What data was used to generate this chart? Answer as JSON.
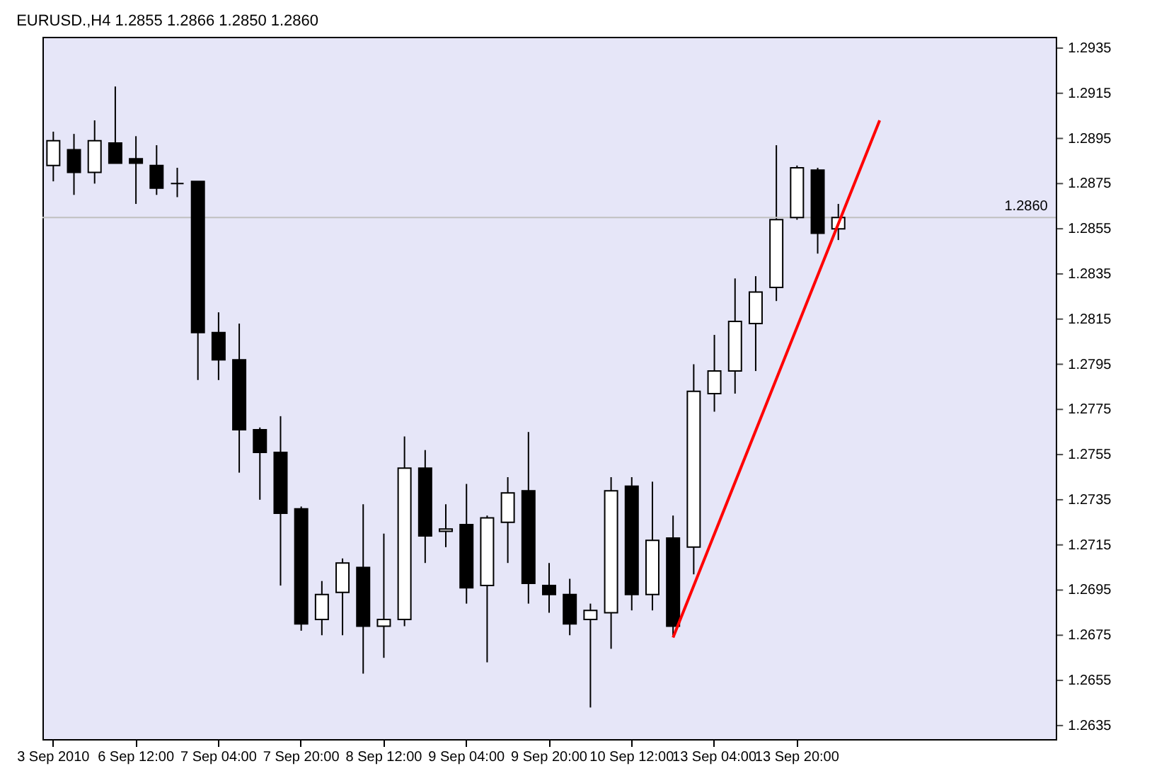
{
  "chart_data": {
    "type": "candlestick",
    "title": "EURUSD.,H4 1.2855 1.2866 1.2850 1.2860",
    "categories": [
      "3 Sep 2010",
      null,
      null,
      null,
      "6 Sep 12:00",
      null,
      null,
      null,
      "7 Sep 04:00",
      null,
      null,
      null,
      "7 Sep 20:00",
      null,
      null,
      null,
      "8 Sep 12:00",
      null,
      null,
      null,
      "9 Sep 04:00",
      null,
      null,
      null,
      "9 Sep 20:00",
      null,
      null,
      null,
      "10 Sep 12:00",
      null,
      null,
      null,
      "13 Sep 04:00",
      null,
      null,
      null,
      "13 Sep 20:00",
      null,
      null,
      null,
      null,
      null,
      null,
      null,
      null,
      null,
      null,
      null,
      null
    ],
    "ohlc": [
      [
        1.2883,
        1.2898,
        1.2876,
        1.2894
      ],
      [
        1.289,
        1.2897,
        1.287,
        1.288
      ],
      [
        1.288,
        1.2903,
        1.2875,
        1.2894
      ],
      [
        1.2893,
        1.2918,
        1.2884,
        1.2884
      ],
      [
        1.2886,
        1.2896,
        1.2866,
        1.2884
      ],
      [
        1.2883,
        1.2892,
        1.287,
        1.2873
      ],
      [
        1.2875,
        1.2882,
        1.2869,
        1.2875
      ],
      [
        1.2876,
        1.2876,
        1.2788,
        1.2809
      ],
      [
        1.2809,
        1.2818,
        1.2788,
        1.2797
      ],
      [
        1.2797,
        1.2813,
        1.2747,
        1.2766
      ],
      [
        1.2766,
        1.2767,
        1.2735,
        1.2756
      ],
      [
        1.2756,
        1.2772,
        1.2697,
        1.2729
      ],
      [
        1.2731,
        1.2732,
        1.2677,
        1.268
      ],
      [
        1.2682,
        1.2699,
        1.2675,
        1.2693
      ],
      [
        1.2694,
        1.2709,
        1.2675,
        1.2707
      ],
      [
        1.2705,
        1.2733,
        1.2658,
        1.2679
      ],
      [
        1.2679,
        1.272,
        1.2665,
        1.2682
      ],
      [
        1.2682,
        1.2763,
        1.2679,
        1.2749
      ],
      [
        1.2749,
        1.2757,
        1.2707,
        1.2719
      ],
      [
        1.2721,
        1.2733,
        1.2714,
        1.2722
      ],
      [
        1.2724,
        1.2742,
        1.2689,
        1.2696
      ],
      [
        1.2697,
        1.2728,
        1.2663,
        1.2727
      ],
      [
        1.2725,
        1.2745,
        1.2707,
        1.2738
      ],
      [
        1.2739,
        1.2765,
        1.2689,
        1.2698
      ],
      [
        1.2697,
        1.2707,
        1.2685,
        1.2693
      ],
      [
        1.2693,
        1.27,
        1.2675,
        1.268
      ],
      [
        1.2682,
        1.2689,
        1.2643,
        1.2686
      ],
      [
        1.2685,
        1.2745,
        1.2669,
        1.2739
      ],
      [
        1.2741,
        1.2745,
        1.2686,
        1.2693
      ],
      [
        1.2693,
        1.2743,
        1.2686,
        1.2717
      ],
      [
        1.2718,
        1.2728,
        1.2675,
        1.2679
      ],
      [
        1.2714,
        1.2795,
        1.2702,
        1.2783
      ],
      [
        1.2782,
        1.2808,
        1.2774,
        1.2792
      ],
      [
        1.2792,
        1.2833,
        1.2782,
        1.2814
      ],
      [
        1.2813,
        1.2834,
        1.2792,
        1.2827
      ],
      [
        1.2829,
        1.2892,
        1.2823,
        1.2859
      ],
      [
        1.286,
        1.2883,
        1.2859,
        1.2882
      ],
      [
        1.2881,
        1.2882,
        1.2844,
        1.2853
      ],
      [
        1.2855,
        1.2866,
        1.285,
        1.286
      ],
      null,
      null,
      null,
      null,
      null,
      null,
      null,
      null,
      null,
      null
    ],
    "colors": [
      "#ffffff",
      "#000000",
      "#ffffff",
      "#000000",
      "#000000",
      "#000000",
      "#000000",
      "#000000",
      "#000000",
      "#000000",
      "#000000",
      "#000000",
      "#000000",
      "#ffffff",
      "#ffffff",
      "#000000",
      "#ffffff",
      "#ffffff",
      "#000000",
      "#ffffff",
      "#000000",
      "#ffffff",
      "#ffffff",
      "#000000",
      "#000000",
      "#000000",
      "#ffffff",
      "#ffffff",
      "#000000",
      "#ffffff",
      "#000000",
      "#ffffff",
      "#ffffff",
      "#ffffff",
      "#ffffff",
      "#ffffff",
      "#ffffff",
      "#000000",
      "#ffffff",
      null,
      null,
      null,
      null,
      null,
      null,
      null,
      null,
      null,
      null
    ],
    "series": [
      {
        "type": "line",
        "values": [
          null,
          null,
          null,
          null,
          null,
          null,
          null,
          null,
          null,
          null,
          null,
          null,
          null,
          null,
          null,
          null,
          null,
          null,
          null,
          null,
          null,
          null,
          null,
          null,
          null,
          null,
          null,
          null,
          null,
          null,
          1.2674,
          null,
          null,
          null,
          null,
          null,
          null,
          null,
          null,
          null,
          1.2903,
          null,
          null,
          null,
          null,
          null,
          null,
          null,
          null
        ],
        "color": "#ff0000"
      }
    ],
    "ref_lines": [
      {
        "axis": "y",
        "value": 1.286,
        "label": "1.2860",
        "color": "#c0c0c0"
      }
    ],
    "ylim": [
      1.2629,
      1.294
    ],
    "yticks": [
      1.2635,
      1.2655,
      1.2675,
      1.2695,
      1.2715,
      1.2735,
      1.2755,
      1.2775,
      1.2795,
      1.2815,
      1.2835,
      1.2855,
      1.2875,
      1.2895,
      1.2915,
      1.2935
    ],
    "grid": false
  }
}
